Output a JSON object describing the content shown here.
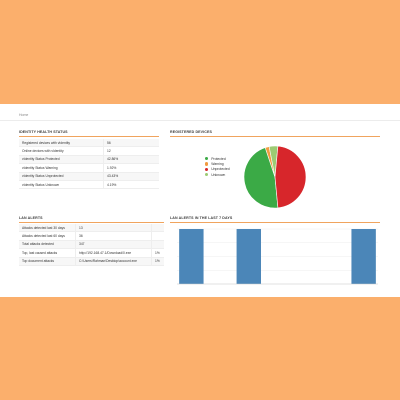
{
  "breadcrumb": {
    "home": "Home"
  },
  "identity_status": {
    "title": "IDENTITY HEALTH STATUS",
    "rows": [
      [
        "Registered devices with vIdentity",
        "56"
      ],
      [
        "Online devices with vIdentity",
        "12"
      ],
      [
        "vIdentity Status Protected",
        "42.86%"
      ],
      [
        "vIdentity Status Warning",
        "1.92%"
      ],
      [
        "vIdentity Status Unprotected",
        "43.43%"
      ],
      [
        "vIdentity Status Unknown",
        "4.19%"
      ]
    ]
  },
  "registered_devices": {
    "title": "REGISTERED DEVICES"
  },
  "chart_data": [
    {
      "type": "pie",
      "title": "REGISTERED DEVICES",
      "labels": [
        "Protected",
        "Warning",
        "Unprotected",
        "Unknown"
      ],
      "values": [
        42.86,
        1.92,
        43.43,
        4.19
      ],
      "colors": [
        "#3BAA46",
        "#F29B3F",
        "#D7262B",
        "#9CCB73"
      ],
      "legend": "left"
    },
    {
      "type": "bar",
      "title": "LAN ALERTS IN THE LAST 7 DAYS",
      "categories": [
        "",
        "",
        "",
        "",
        "",
        "",
        ""
      ],
      "values": [
        1,
        0,
        1,
        0,
        0,
        0,
        1
      ],
      "ylim": [
        0,
        1
      ],
      "grid": true,
      "color": "#4B86B8"
    }
  ],
  "lan_alerts": {
    "title": "LAN ALERTS",
    "rows": [
      [
        "Attacks detected last 30 days",
        "13",
        ""
      ],
      [
        "Attacks detected last 60 days",
        "36",
        ""
      ],
      [
        "Total attacks detected",
        "347",
        ""
      ],
      [
        "Top, last caused attacks",
        "http://192.168.47.1/Download/0.exe",
        "1%"
      ],
      [
        "Top document attacks",
        "C:\\Users\\Rahman\\Desktop\\account.exe",
        "1%"
      ]
    ]
  },
  "lan_chart": {
    "title": "LAN ALERTS IN THE LAST 7 DAYS"
  },
  "colors": {
    "background": "#FBAF6C",
    "accent_rule": "#F0A45E",
    "bar": "#4B86B8"
  }
}
